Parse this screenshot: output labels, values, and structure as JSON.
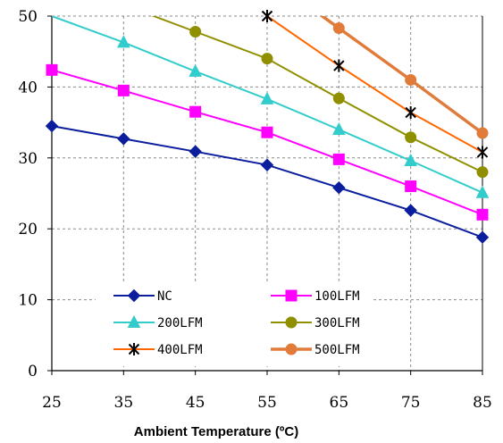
{
  "chart_data": {
    "type": "line",
    "xlabel": "Ambient Temperature (ºC)",
    "ylabel": "",
    "x": [
      25,
      35,
      45,
      55,
      65,
      75,
      85
    ],
    "xticks": [
      "25",
      "35",
      "45",
      "55",
      "65",
      "75",
      "85"
    ],
    "yticks": [
      "0",
      "10",
      "20",
      "30",
      "40",
      "50"
    ],
    "xlim": [
      25,
      85
    ],
    "ylim": [
      0,
      50
    ],
    "grid": "dashed",
    "legend_placement": "lower-center",
    "series": [
      {
        "name": "NC",
        "color": "#0b1e9e",
        "marker": "diamond",
        "values": [
          34.5,
          32.7,
          30.9,
          29.0,
          25.8,
          22.6,
          18.8
        ]
      },
      {
        "name": "100LFM",
        "color": "#ff00ff",
        "marker": "square",
        "values": [
          42.4,
          39.5,
          36.5,
          33.6,
          29.8,
          26.0,
          22.0
        ]
      },
      {
        "name": "200LFM",
        "color": "#33cccc",
        "marker": "triangle",
        "values": [
          50.0,
          46.3,
          42.2,
          38.3,
          34.0,
          29.6,
          25.1
        ]
      },
      {
        "name": "300LFM",
        "color": "#8f8f00",
        "marker": "circle",
        "values": [
          null,
          null,
          47.8,
          44.0,
          38.4,
          32.9,
          28.0
        ]
      },
      {
        "name": "400LFM",
        "color": "#ff6600",
        "marker": "star",
        "values": [
          null,
          null,
          null,
          50.0,
          43.0,
          36.4,
          30.8
        ]
      },
      {
        "name": "500LFM",
        "color": "#e07b39",
        "marker": "circle",
        "values": [
          null,
          null,
          null,
          null,
          48.3,
          41.0,
          33.5
        ]
      }
    ]
  }
}
